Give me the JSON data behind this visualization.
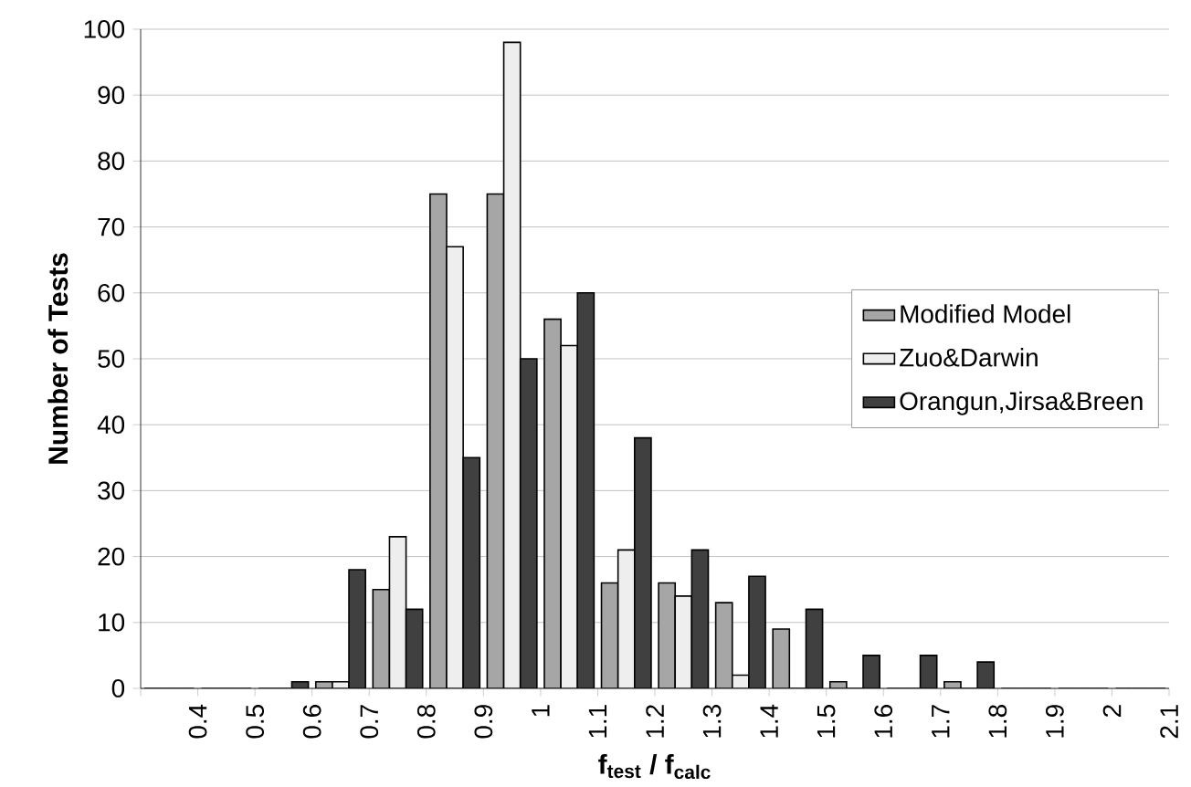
{
  "chart_data": {
    "type": "histogram",
    "xlabel": "f$_{test}$ / f$_{calc}$",
    "ylabel": "Number of Tests",
    "bins": [
      0.3,
      0.4,
      0.5,
      0.6,
      0.7,
      0.8,
      0.9,
      1.0,
      1.1,
      1.2,
      1.3,
      1.4,
      1.5,
      1.6,
      1.7,
      1.8,
      1.9,
      2.0,
      2.1
    ],
    "series": [
      {
        "name": "Modified Model",
        "color": "#a6a6a6",
        "values": [
          0,
          0,
          0,
          1,
          15,
          75,
          75,
          56,
          16,
          16,
          13,
          9,
          1,
          0,
          1,
          0,
          0,
          0
        ]
      },
      {
        "name": "Zuo&Darwin",
        "color": "#eeeeee",
        "values": [
          0,
          0,
          0,
          1,
          23,
          67,
          98,
          52,
          21,
          14,
          2,
          0,
          0,
          0,
          0,
          0,
          0,
          0
        ]
      },
      {
        "name": "Orangun,Jirsa&Breen",
        "color": "#404040",
        "values": [
          0,
          0,
          1,
          18,
          12,
          35,
          50,
          60,
          38,
          21,
          17,
          12,
          5,
          5,
          4,
          0,
          0,
          0
        ]
      }
    ],
    "xlim": [
      0.3,
      2.1
    ],
    "xticks": [
      {
        "value": 0.3,
        "label": null
      },
      0.4,
      0.5,
      0.6,
      0.7,
      0.8,
      0.9,
      1,
      1.1,
      1.2,
      1.3,
      1.4,
      1.5,
      1.6,
      1.7,
      1.8,
      1.9,
      2,
      2.1
    ],
    "ylim": [
      0,
      100
    ],
    "yticks": [
      0,
      10,
      20,
      30,
      40,
      50,
      60,
      70,
      80,
      90,
      100
    ],
    "grid": "y",
    "legend": "right"
  }
}
